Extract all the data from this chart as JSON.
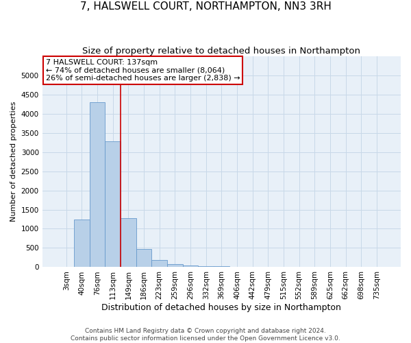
{
  "title": "7, HALSWELL COURT, NORTHAMPTON, NN3 3RH",
  "subtitle": "Size of property relative to detached houses in Northampton",
  "xlabel": "Distribution of detached houses by size in Northampton",
  "ylabel": "Number of detached properties",
  "categories": [
    "3sqm",
    "40sqm",
    "76sqm",
    "113sqm",
    "149sqm",
    "186sqm",
    "223sqm",
    "259sqm",
    "296sqm",
    "332sqm",
    "369sqm",
    "406sqm",
    "442sqm",
    "479sqm",
    "515sqm",
    "552sqm",
    "589sqm",
    "625sqm",
    "662sqm",
    "698sqm",
    "735sqm"
  ],
  "values": [
    0,
    1250,
    4300,
    3280,
    1280,
    470,
    190,
    80,
    45,
    30,
    20,
    0,
    0,
    0,
    0,
    0,
    0,
    0,
    0,
    0,
    0
  ],
  "bar_color": "#b8d0e8",
  "bar_edge_color": "#6699cc",
  "vline_x": 3.5,
  "vline_color": "#cc0000",
  "annotation_text": "7 HALSWELL COURT: 137sqm\n← 74% of detached houses are smaller (8,064)\n26% of semi-detached houses are larger (2,838) →",
  "annotation_box_color": "#cc0000",
  "ylim": [
    0,
    5500
  ],
  "yticks": [
    0,
    500,
    1000,
    1500,
    2000,
    2500,
    3000,
    3500,
    4000,
    4500,
    5000
  ],
  "grid_color": "#c8d8e8",
  "bg_color": "#e8f0f8",
  "footer": "Contains HM Land Registry data © Crown copyright and database right 2024.\nContains public sector information licensed under the Open Government Licence v3.0.",
  "title_fontsize": 11,
  "subtitle_fontsize": 9.5,
  "xlabel_fontsize": 9,
  "ylabel_fontsize": 8,
  "tick_fontsize": 7.5,
  "annotation_fontsize": 8,
  "footer_fontsize": 6.5
}
